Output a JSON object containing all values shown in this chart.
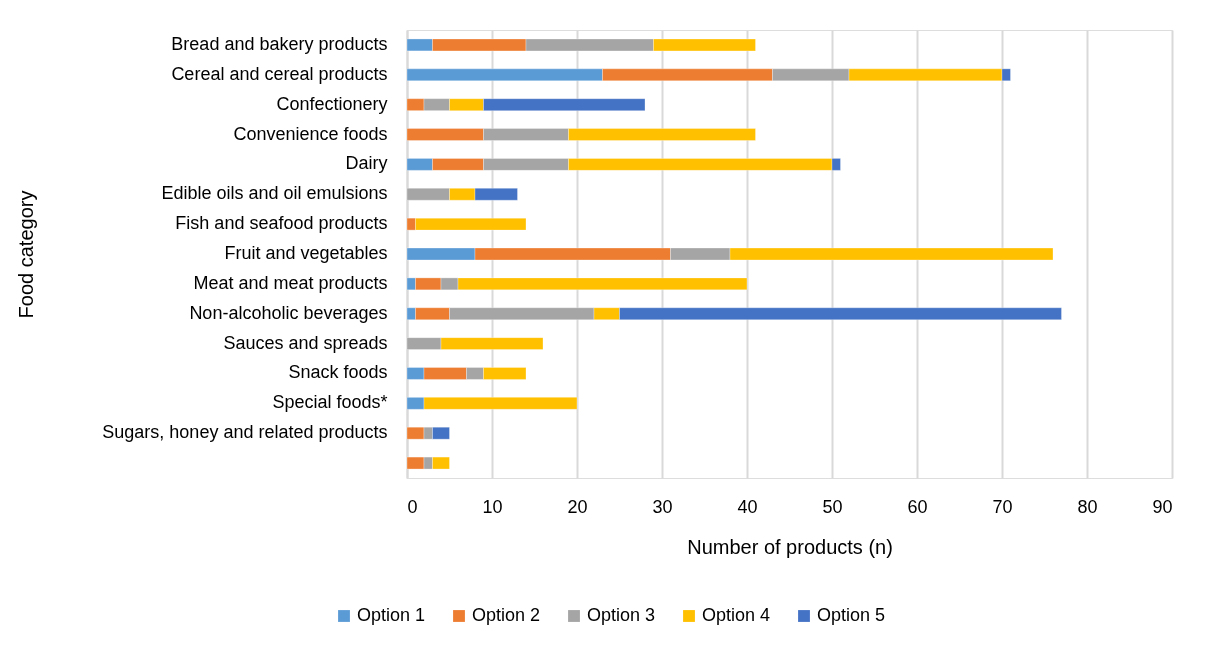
{
  "chart_data": {
    "type": "bar",
    "orientation": "horizontal",
    "stacked": true,
    "xlabel": "Number of products (n)",
    "ylabel": "Food category",
    "categories": [
      "Bread and bakery products",
      "Cereal and cereal products",
      "Confectionery",
      "Convenience foods",
      "Dairy",
      "Edible oils and oil emulsions",
      "Fish and seafood products",
      "Fruit and vegetables",
      "Meat and meat products",
      "Non-alcoholic beverages",
      "Sauces and spreads",
      "Snack foods",
      "Special foods*",
      "Sugars, honey and related products",
      null
    ],
    "series": [
      {
        "name": "Option 1",
        "color": "#5b9bd5",
        "values": [
          3,
          23,
          null,
          null,
          3,
          null,
          null,
          8,
          1,
          1,
          null,
          2,
          2,
          null,
          null
        ]
      },
      {
        "name": "Option 2",
        "color": "#ed7d31",
        "values": [
          11,
          20,
          2,
          9,
          6,
          null,
          1,
          23,
          3,
          4,
          null,
          5,
          null,
          2,
          2
        ]
      },
      {
        "name": "Option 3",
        "color": "#a5a5a5",
        "values": [
          15,
          9,
          3,
          10,
          10,
          5,
          null,
          7,
          2,
          17,
          4,
          2,
          null,
          1,
          1
        ]
      },
      {
        "name": "Option 4",
        "color": "#ffc000",
        "values": [
          12,
          18,
          4,
          22,
          31,
          3,
          13,
          38,
          34,
          3,
          12,
          5,
          18,
          null,
          2
        ]
      },
      {
        "name": "Option 5",
        "color": "#4472c4",
        "values": [
          null,
          1,
          19,
          null,
          1,
          5,
          null,
          null,
          null,
          52,
          null,
          null,
          null,
          2,
          null
        ]
      }
    ],
    "xlim": [
      0,
      90
    ],
    "xticks": [
      0,
      10,
      20,
      30,
      40,
      50,
      60,
      70,
      80,
      90
    ],
    "grid": "x",
    "legend": "bottom"
  }
}
